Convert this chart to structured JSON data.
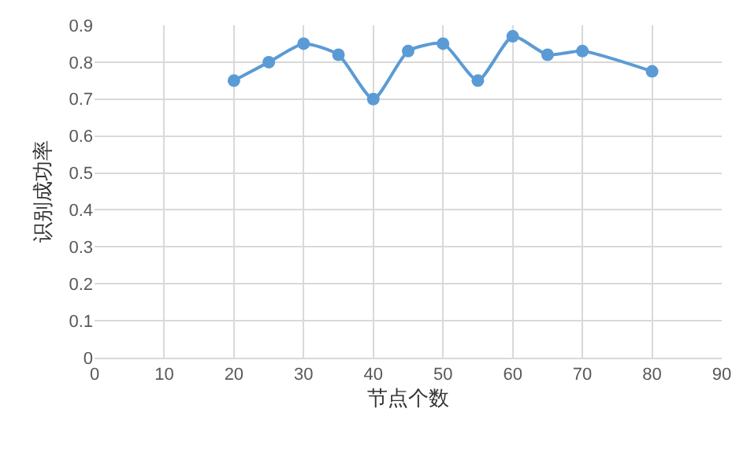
{
  "chart_data": {
    "type": "line",
    "xlabel": "节点个数",
    "ylabel": "识别成功率",
    "x": [
      20,
      25,
      30,
      35,
      40,
      45,
      50,
      55,
      60,
      65,
      70,
      80
    ],
    "series": [
      {
        "color": "#5b9bd5",
        "values": [
          0.75,
          0.8,
          0.85,
          0.82,
          0.7,
          0.83,
          0.85,
          0.75,
          0.87,
          0.82,
          0.83,
          0.775
        ]
      }
    ],
    "xlim": [
      0,
      90
    ],
    "xticks": [
      0,
      10,
      20,
      30,
      40,
      50,
      60,
      70,
      80,
      90
    ],
    "ylim": [
      0,
      0.9
    ],
    "yticks": [
      {
        "value": 0,
        "label": "0"
      },
      0.1,
      0.2,
      0.3,
      0.4,
      0.5,
      0.6,
      0.7,
      0.8,
      0.9
    ],
    "grid": true,
    "marker": "circle",
    "line_style": "solid",
    "legend": false
  }
}
